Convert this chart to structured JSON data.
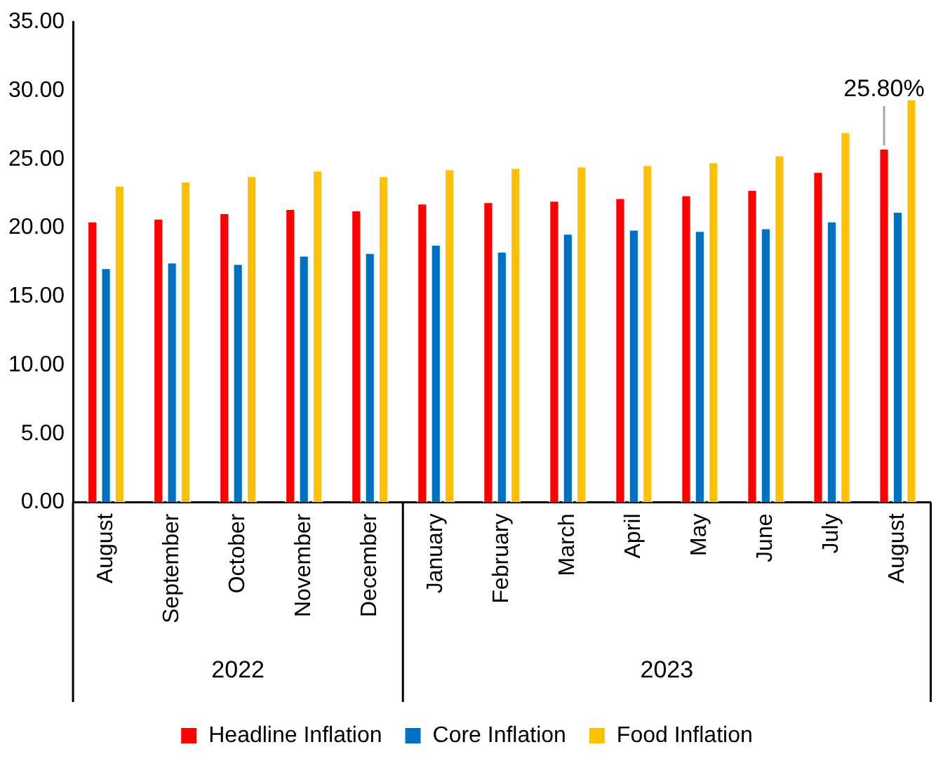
{
  "chart_data": {
    "type": "bar",
    "categories": [
      "August",
      "September",
      "October",
      "November",
      "December",
      "January",
      "February",
      "March",
      "April",
      "May",
      "June",
      "July",
      "August"
    ],
    "series": [
      {
        "name": "Headline Inflation",
        "color": "#ff0000",
        "values": [
          20.5,
          20.7,
          21.1,
          21.4,
          21.3,
          21.8,
          21.9,
          22.0,
          22.2,
          22.4,
          22.8,
          24.1,
          25.8
        ],
        "value_labels": [
          null,
          null,
          null,
          null,
          null,
          null,
          null,
          null,
          null,
          null,
          null,
          null,
          "25.80%"
        ]
      },
      {
        "name": "Core Inflation",
        "color": "#0070c0",
        "values": [
          17.1,
          17.5,
          17.4,
          18.0,
          18.2,
          18.8,
          18.3,
          19.6,
          19.9,
          19.8,
          20.0,
          20.5,
          21.2
        ]
      },
      {
        "name": "Food Inflation",
        "color": "#ffc000",
        "values": [
          23.1,
          23.4,
          23.8,
          24.2,
          23.8,
          24.3,
          24.4,
          24.5,
          24.6,
          24.8,
          25.3,
          27.0,
          29.4
        ]
      }
    ],
    "ylim": [
      0,
      35
    ],
    "yticks": [
      {
        "value": 0,
        "label": "0.00"
      },
      {
        "value": 5,
        "label": "5.00"
      },
      {
        "value": 10,
        "label": "10.00"
      },
      {
        "value": 15,
        "label": "15.00"
      },
      {
        "value": 20,
        "label": "20.00"
      },
      {
        "value": 25,
        "label": "25.00"
      },
      {
        "value": 30,
        "label": "30.00"
      },
      {
        "value": 35,
        "label": "35.00"
      }
    ],
    "annotations": [
      "2022",
      "2023"
    ],
    "grid": false,
    "legend": "bottom"
  }
}
